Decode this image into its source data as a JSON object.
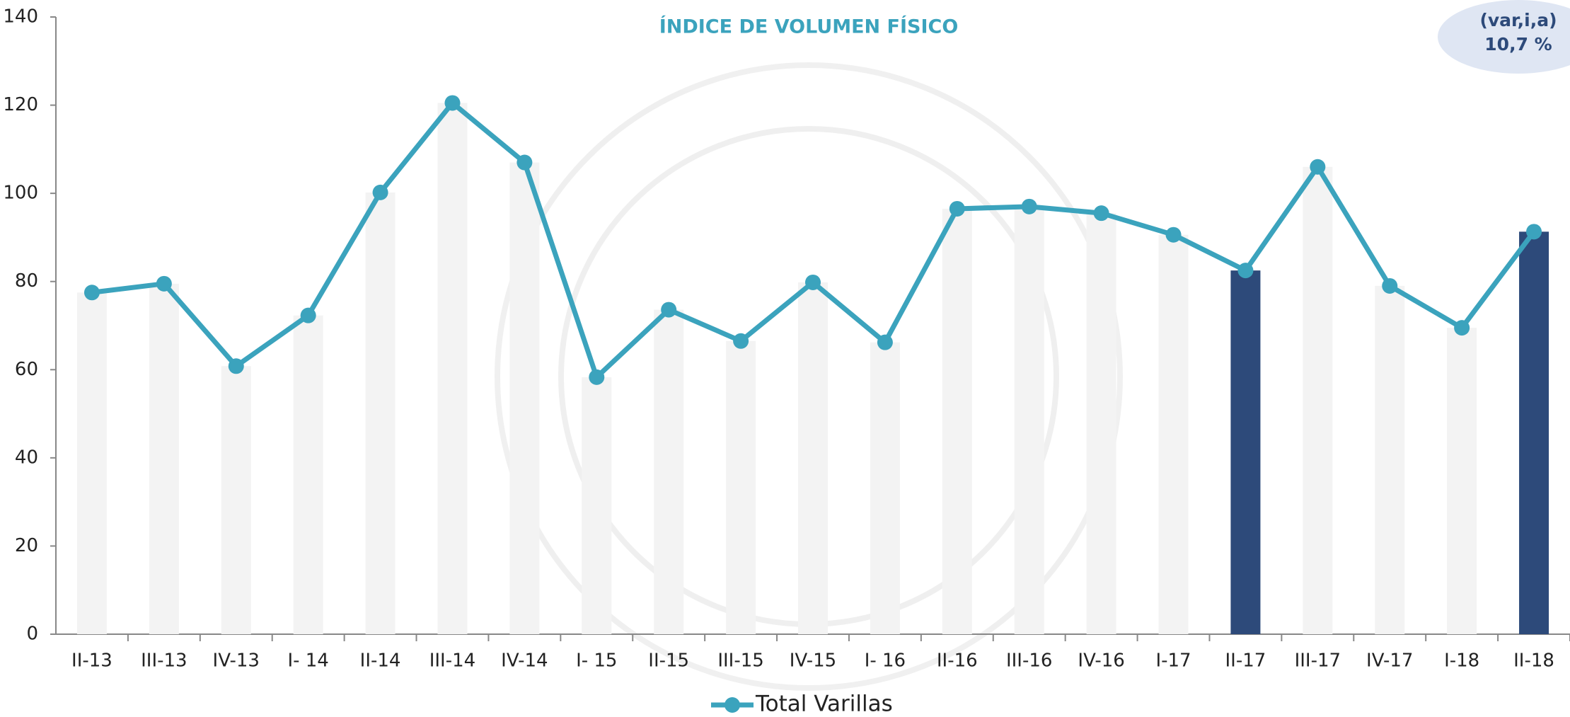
{
  "chart_data": {
    "type": "line",
    "title": "ÍNDICE DE VOLUMEN FÍSICO",
    "annotations": [
      "(var,i,a)",
      "10,7 %"
    ],
    "categories": [
      "II-13",
      "III-13",
      "IV-13",
      "I- 14",
      "II-14",
      "III-14",
      "IV-14",
      "I- 15",
      "II-15",
      "III-15",
      "IV-15",
      "I- 16",
      "II-16",
      "III-16",
      "IV-16",
      "I-17",
      "II-17",
      "III-17",
      "IV-17",
      "I-18",
      "II-18"
    ],
    "series": [
      {
        "name": "Total Varillas",
        "color": "#3ba3bd",
        "values": [
          77.5,
          79.5,
          60.8,
          72.3,
          100.2,
          120.5,
          107,
          58.3,
          73.6,
          66.5,
          79.8,
          66.2,
          96.5,
          97,
          95.5,
          90.6,
          82.5,
          106,
          79,
          69.5,
          91.3
        ]
      }
    ],
    "bar_colors": [
      "#f3f3f3",
      "#f3f3f3",
      "#f3f3f3",
      "#f3f3f3",
      "#f3f3f3",
      "#f3f3f3",
      "#f3f3f3",
      "#f3f3f3",
      "#f3f3f3",
      "#f3f3f3",
      "#f3f3f3",
      "#f3f3f3",
      "#f3f3f3",
      "#f3f3f3",
      "#f3f3f3",
      "#f3f3f3",
      "#2d4a7a",
      "#f3f3f3",
      "#f3f3f3",
      "#f3f3f3",
      "#2d4a7a"
    ],
    "ylim": [
      0,
      140
    ],
    "yticks": [
      0,
      20,
      40,
      60,
      80,
      100,
      120,
      140
    ],
    "legend": "bottom"
  }
}
